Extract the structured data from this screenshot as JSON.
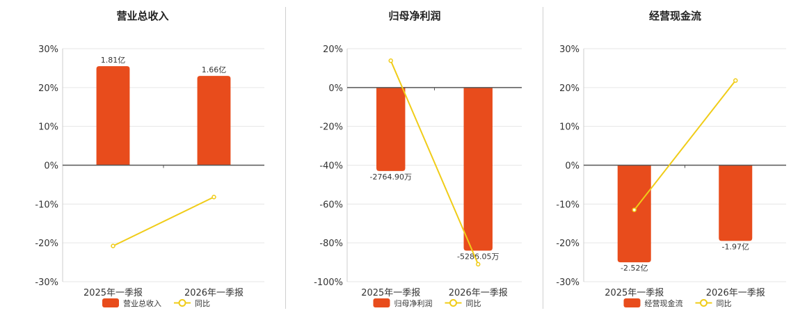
{
  "colors": {
    "bar": "#e84c1c",
    "line": "#f0cc18",
    "grid": "#e6e6e6",
    "axis": "#555555"
  },
  "chart_data": [
    {
      "type": "bar",
      "title": "营业总收入",
      "categories": [
        "2025年一季报",
        "2026年一季报"
      ],
      "series": [
        {
          "name": "营业总收入",
          "type": "bar",
          "values": [
            25.5,
            23.0
          ],
          "labels": [
            "1.81亿",
            "1.66亿"
          ]
        },
        {
          "name": "同比",
          "type": "line",
          "values": [
            -20.8,
            -8.2
          ]
        }
      ],
      "ylim": [
        -30,
        30
      ],
      "yticks": [
        "30%",
        "20%",
        "10%",
        "0%",
        "-10%",
        "-20%",
        "-30%"
      ],
      "grid": true,
      "legend": "bottom"
    },
    {
      "type": "bar",
      "title": "归母净利润",
      "categories": [
        "2025年一季报",
        "2026年一季报"
      ],
      "series": [
        {
          "name": "归母净利润",
          "type": "bar",
          "values": [
            -43,
            -84
          ],
          "labels": [
            "-2764.90万",
            "-5286.05万"
          ]
        },
        {
          "name": "同比",
          "type": "line",
          "values": [
            13.8,
            -91
          ]
        }
      ],
      "ylim": [
        -100,
        20
      ],
      "yticks": [
        "20%",
        "0%",
        "-20%",
        "-40%",
        "-60%",
        "-80%",
        "-100%"
      ],
      "grid": true,
      "legend": "bottom"
    },
    {
      "type": "bar",
      "title": "经营现金流",
      "categories": [
        "2025年一季报",
        "2026年一季报"
      ],
      "series": [
        {
          "name": "经营现金流",
          "type": "bar",
          "values": [
            -25,
            -19.5
          ],
          "labels": [
            "-2.52亿",
            "-1.97亿"
          ]
        },
        {
          "name": "同比",
          "type": "line",
          "values": [
            -11.5,
            21.8
          ]
        }
      ],
      "ylim": [
        -30,
        30
      ],
      "yticks": [
        "30%",
        "20%",
        "10%",
        "0%",
        "-10%",
        "-20%",
        "-30%"
      ],
      "grid": true,
      "legend": "bottom"
    }
  ]
}
